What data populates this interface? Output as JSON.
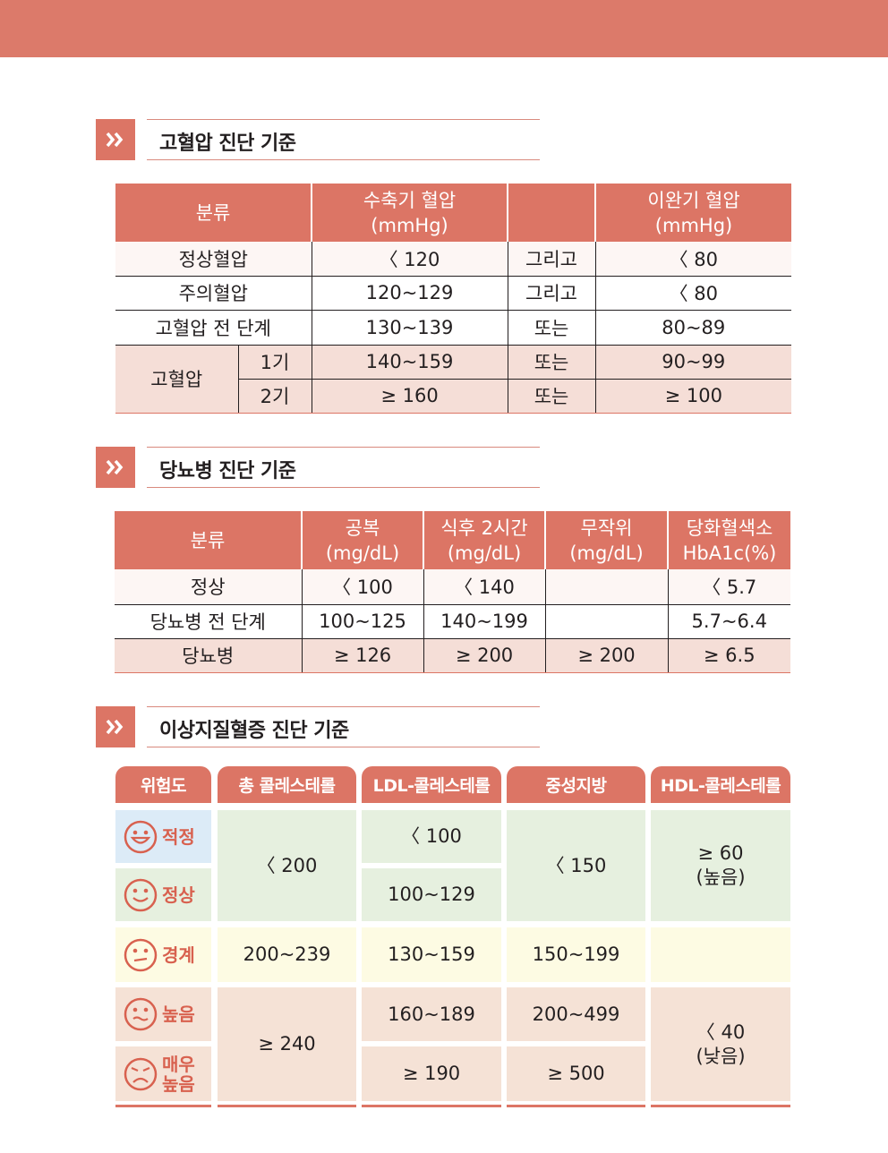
{
  "colors": {
    "accent": "#dc7565",
    "green": "#e6f0df",
    "blue": "#dcebf7",
    "yellow": "#fdfbe3",
    "peach": "#f5e2d6"
  },
  "icons": {
    "section": "double-chevron-icon"
  },
  "hypertension": {
    "title": "고혈압 진단 기준",
    "headers": {
      "category": "분류",
      "systolic_1": "수축기 혈압",
      "systolic_2": "(mmHg)",
      "blank": "",
      "diastolic_1": "이완기 혈압",
      "diastolic_2": "(mmHg)"
    },
    "rows": [
      {
        "category": "정상혈압",
        "systolic": "〈 120",
        "conj": "그리고",
        "diastolic": "〈 80"
      },
      {
        "category": "주의혈압",
        "systolic": "120~129",
        "conj": "그리고",
        "diastolic": "〈 80"
      },
      {
        "category": "고혈압 전 단계",
        "systolic": "130~139",
        "conj": "또는",
        "diastolic": "80~89"
      }
    ],
    "hyper": {
      "category": "고혈압",
      "stage1": {
        "stage": "1기",
        "systolic": "140~159",
        "conj": "또는",
        "diastolic": "90~99"
      },
      "stage2": {
        "stage": "2기",
        "systolic": "≥ 160",
        "conj": "또는",
        "diastolic": "≥ 100"
      }
    }
  },
  "diabetes": {
    "title": "당뇨병 진단 기준",
    "headers": {
      "category": "분류",
      "fasting_1": "공복",
      "fasting_2": "(mg/dL)",
      "post_1": "식후 2시간",
      "post_2": "(mg/dL)",
      "random_1": "무작위",
      "random_2": "(mg/dL)",
      "hba_1": "당화혈색소",
      "hba_2": "HbA1c(%)"
    },
    "rows": [
      {
        "category": "정상",
        "fasting": "〈 100",
        "post": "〈 140",
        "random": "",
        "hba": "〈 5.7"
      },
      {
        "category": "당뇨병 전 단계",
        "fasting": "100~125",
        "post": "140~199",
        "random": "",
        "hba": "5.7~6.4"
      },
      {
        "category": "당뇨병",
        "fasting": "≥ 126",
        "post": "≥ 200",
        "random": "≥ 200",
        "hba": "≥ 6.5"
      }
    ]
  },
  "dyslipidemia": {
    "title": "이상지질혈증 진단 기준",
    "headers": {
      "risk": "위험도",
      "total": "총 콜레스테롤",
      "ldl": "LDL-콜레스테롤",
      "tg": "중성지방",
      "hdl": "HDL-콜레스테롤"
    },
    "levels": {
      "optimal": "적정",
      "normal": "정상",
      "borderline": "경계",
      "high": "높음",
      "very_high_1": "매우",
      "very_high_2": "높음"
    },
    "total": {
      "optimal_normal": "〈 200",
      "borderline": "200~239",
      "high": "≥ 240"
    },
    "ldl": {
      "optimal": "〈 100",
      "normal": "100~129",
      "borderline": "130~159",
      "high": "160~189",
      "very_high": "≥ 190"
    },
    "tg": {
      "optimal_normal": "〈 150",
      "borderline": "150~199",
      "high": "200~499",
      "very_high": "≥ 500"
    },
    "hdl": {
      "top_1": "≥ 60",
      "top_2": "(높음)",
      "borderline": "",
      "low_1": "〈 40",
      "low_2": "(낮음)"
    }
  }
}
